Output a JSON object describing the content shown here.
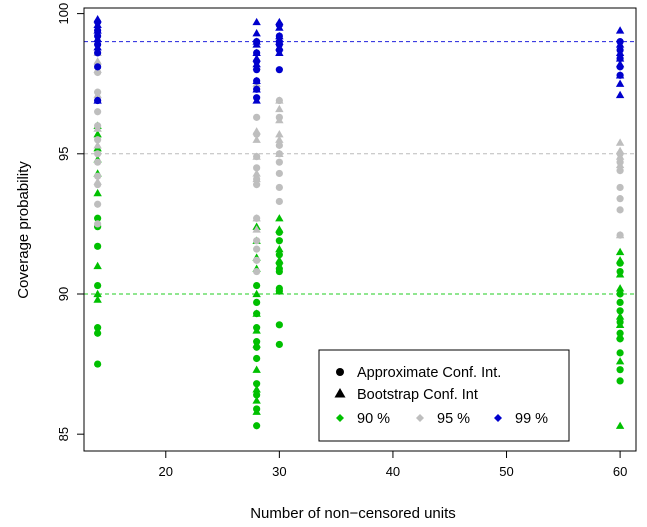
{
  "chart_data": {
    "type": "scatter",
    "xlabel": "Number of non−censored units",
    "ylabel": "Coverage probability",
    "xlim": [
      12.8,
      61.4
    ],
    "ylim": [
      84.4,
      100.2
    ],
    "xticks": [
      20,
      30,
      40,
      50,
      60
    ],
    "yticks": [
      85,
      90,
      95,
      100
    ],
    "reference_lines": [
      {
        "y": 90,
        "color": "#22cc22"
      },
      {
        "y": 95,
        "color": "#bbbbbb"
      },
      {
        "y": 99,
        "color": "#2222dd"
      }
    ],
    "colors": {
      "90": "#00c000",
      "95": "#bebebe",
      "99": "#0000cd"
    },
    "legend": {
      "position": "bottom-right",
      "shape_entries": [
        {
          "label": "Approximate Conf. Int.",
          "shape": "circle"
        },
        {
          "label": "Bootstrap Conf. Int",
          "shape": "triangle"
        }
      ],
      "color_entries": [
        {
          "label": "90 %",
          "level": "90"
        },
        {
          "label": "95 %",
          "level": "95"
        },
        {
          "label": "99 %",
          "level": "99"
        }
      ]
    },
    "series": [
      {
        "level": "90",
        "method": "approximate",
        "points": [
          [
            14,
            92.7
          ],
          [
            14,
            92.4
          ],
          [
            14,
            91.7
          ],
          [
            14,
            90.3
          ],
          [
            14,
            88.8
          ],
          [
            14,
            88.6
          ],
          [
            14,
            87.5
          ],
          [
            28,
            90.3
          ],
          [
            28,
            89.7
          ],
          [
            28,
            89.3
          ],
          [
            28,
            88.8
          ],
          [
            28,
            88.3
          ],
          [
            28,
            88.1
          ],
          [
            28,
            87.7
          ],
          [
            28,
            86.8
          ],
          [
            28,
            86.4
          ],
          [
            28,
            85.9
          ],
          [
            28,
            85.3
          ],
          [
            30,
            92.2
          ],
          [
            30,
            91.9
          ],
          [
            30,
            91.4
          ],
          [
            30,
            91.1
          ],
          [
            30,
            90.9
          ],
          [
            30,
            90.8
          ],
          [
            30,
            90.2
          ],
          [
            30,
            90.1
          ],
          [
            30,
            88.9
          ],
          [
            30,
            88.2
          ],
          [
            60,
            91.1
          ],
          [
            60,
            90.8
          ],
          [
            60,
            90.0
          ],
          [
            60,
            89.7
          ],
          [
            60,
            89.4
          ],
          [
            60,
            89.0
          ],
          [
            60,
            88.6
          ],
          [
            60,
            88.4
          ],
          [
            60,
            87.9
          ],
          [
            60,
            87.3
          ],
          [
            60,
            86.9
          ]
        ]
      },
      {
        "level": "90",
        "method": "bootstrap",
        "points": [
          [
            14,
            96.0
          ],
          [
            14,
            95.7
          ],
          [
            14,
            95.2
          ],
          [
            14,
            94.8
          ],
          [
            14,
            94.3
          ],
          [
            14,
            93.6
          ],
          [
            14,
            91.0
          ],
          [
            14,
            90.0
          ],
          [
            14,
            89.8
          ],
          [
            28,
            92.4
          ],
          [
            28,
            91.9
          ],
          [
            28,
            91.3
          ],
          [
            28,
            90.9
          ],
          [
            28,
            90.0
          ],
          [
            28,
            89.3
          ],
          [
            28,
            88.7
          ],
          [
            28,
            88.2
          ],
          [
            28,
            87.3
          ],
          [
            28,
            86.6
          ],
          [
            28,
            86.2
          ],
          [
            28,
            85.8
          ],
          [
            30,
            92.7
          ],
          [
            30,
            92.3
          ],
          [
            30,
            91.6
          ],
          [
            30,
            91.2
          ],
          [
            30,
            90.1
          ],
          [
            60,
            91.5
          ],
          [
            60,
            91.2
          ],
          [
            60,
            90.7
          ],
          [
            60,
            90.2
          ],
          [
            60,
            89.2
          ],
          [
            60,
            88.9
          ],
          [
            60,
            88.5
          ],
          [
            60,
            87.6
          ],
          [
            60,
            85.3
          ]
        ]
      },
      {
        "level": "95",
        "method": "approximate",
        "points": [
          [
            14,
            98.2
          ],
          [
            14,
            97.9
          ],
          [
            14,
            97.2
          ],
          [
            14,
            96.9
          ],
          [
            14,
            96.5
          ],
          [
            14,
            96.0
          ],
          [
            14,
            95.5
          ],
          [
            14,
            95.0
          ],
          [
            14,
            94.7
          ],
          [
            14,
            94.2
          ],
          [
            14,
            93.9
          ],
          [
            14,
            93.2
          ],
          [
            14,
            92.5
          ],
          [
            28,
            96.3
          ],
          [
            28,
            95.7
          ],
          [
            28,
            94.9
          ],
          [
            28,
            94.5
          ],
          [
            28,
            94.1
          ],
          [
            28,
            93.9
          ],
          [
            28,
            92.7
          ],
          [
            28,
            91.9
          ],
          [
            28,
            91.6
          ],
          [
            28,
            91.2
          ],
          [
            28,
            90.8
          ],
          [
            30,
            96.9
          ],
          [
            30,
            96.3
          ],
          [
            30,
            95.3
          ],
          [
            30,
            95.0
          ],
          [
            30,
            94.7
          ],
          [
            30,
            94.3
          ],
          [
            30,
            93.8
          ],
          [
            30,
            93.3
          ],
          [
            60,
            95.0
          ],
          [
            60,
            94.7
          ],
          [
            60,
            94.4
          ],
          [
            60,
            93.8
          ],
          [
            60,
            93.4
          ],
          [
            60,
            93.0
          ],
          [
            60,
            92.1
          ]
        ]
      },
      {
        "level": "95",
        "method": "bootstrap",
        "points": [
          [
            14,
            98.6
          ],
          [
            14,
            98.3
          ],
          [
            14,
            98.0
          ],
          [
            14,
            97.1
          ],
          [
            14,
            95.9
          ],
          [
            14,
            95.3
          ],
          [
            14,
            94.0
          ],
          [
            28,
            98.1
          ],
          [
            28,
            97.5
          ],
          [
            28,
            95.8
          ],
          [
            28,
            95.5
          ],
          [
            28,
            94.9
          ],
          [
            28,
            94.3
          ],
          [
            28,
            94.1
          ],
          [
            28,
            92.7
          ],
          [
            28,
            92.3
          ],
          [
            30,
            96.9
          ],
          [
            30,
            96.6
          ],
          [
            30,
            96.2
          ],
          [
            30,
            95.7
          ],
          [
            30,
            95.5
          ],
          [
            30,
            95.0
          ],
          [
            60,
            95.4
          ],
          [
            60,
            95.1
          ],
          [
            60,
            94.9
          ],
          [
            60,
            94.6
          ],
          [
            60,
            92.1
          ]
        ]
      },
      {
        "level": "99",
        "method": "approximate",
        "points": [
          [
            14,
            99.7
          ],
          [
            14,
            99.4
          ],
          [
            14,
            99.2
          ],
          [
            14,
            98.9
          ],
          [
            14,
            98.6
          ],
          [
            14,
            98.1
          ],
          [
            14,
            96.9
          ],
          [
            28,
            99.0
          ],
          [
            28,
            98.6
          ],
          [
            28,
            98.3
          ],
          [
            28,
            98.0
          ],
          [
            28,
            97.6
          ],
          [
            28,
            97.3
          ],
          [
            28,
            97.0
          ],
          [
            30,
            99.6
          ],
          [
            30,
            99.2
          ],
          [
            30,
            99.0
          ],
          [
            30,
            98.9
          ],
          [
            30,
            98.7
          ],
          [
            30,
            98.0
          ],
          [
            60,
            99.0
          ],
          [
            60,
            98.7
          ],
          [
            60,
            98.4
          ],
          [
            60,
            98.1
          ],
          [
            60,
            97.8
          ]
        ]
      },
      {
        "level": "99",
        "method": "bootstrap",
        "points": [
          [
            14,
            99.8
          ],
          [
            14,
            99.6
          ],
          [
            14,
            99.4
          ],
          [
            14,
            99.1
          ],
          [
            14,
            98.8
          ],
          [
            14,
            96.9
          ],
          [
            28,
            99.7
          ],
          [
            28,
            99.3
          ],
          [
            28,
            99.0
          ],
          [
            28,
            98.9
          ],
          [
            28,
            98.6
          ],
          [
            28,
            98.4
          ],
          [
            28,
            98.2
          ],
          [
            28,
            97.6
          ],
          [
            28,
            97.3
          ],
          [
            28,
            96.9
          ],
          [
            30,
            99.7
          ],
          [
            30,
            99.5
          ],
          [
            30,
            99.2
          ],
          [
            30,
            99.0
          ],
          [
            30,
            98.8
          ],
          [
            30,
            98.6
          ],
          [
            60,
            99.4
          ],
          [
            60,
            98.9
          ],
          [
            60,
            98.6
          ],
          [
            60,
            98.4
          ],
          [
            60,
            98.2
          ],
          [
            60,
            97.8
          ],
          [
            60,
            97.5
          ],
          [
            60,
            97.1
          ]
        ]
      }
    ]
  }
}
